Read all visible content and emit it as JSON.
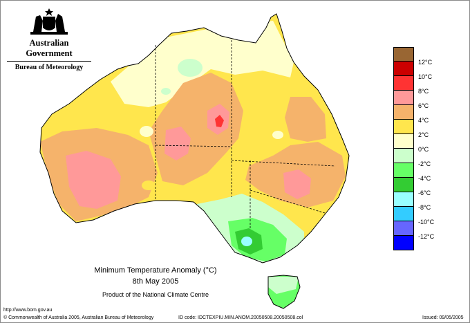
{
  "header": {
    "government": "Australian Government",
    "bureau": "Bureau of Meteorology",
    "crest_icon": "coat-of-arms-icon"
  },
  "legend": {
    "colors": [
      "#996633",
      "#cc0000",
      "#ff3333",
      "#ff9999",
      "#f5b36b",
      "#ffe64d",
      "#ffffcc",
      "#ccffcc",
      "#66ff66",
      "#33cc33",
      "#99ffff",
      "#33ccff",
      "#6666ff",
      "#0000ff"
    ],
    "labels": [
      "12°C",
      "10°C",
      "8°C",
      "6°C",
      "4°C",
      "2°C",
      "0°C",
      "-2°C",
      "-4°C",
      "-6°C",
      "-8°C",
      "-10°C",
      "-12°C"
    ]
  },
  "title": {
    "line1": "Minimum Temperature Anomaly (°C)",
    "line2": "8th May 2005",
    "line3": "Product of the National Climate Centre"
  },
  "footer": {
    "url": "http://www.bom.gov.au",
    "copyright": "© Commonwealth of Australia 2005, Australian Bureau of Meteorology",
    "id_code": "ID code: IDCTEXPIU.MIN.ANOM.20050508.20050508.col",
    "issued": "Issued: 09/05/2005"
  }
}
